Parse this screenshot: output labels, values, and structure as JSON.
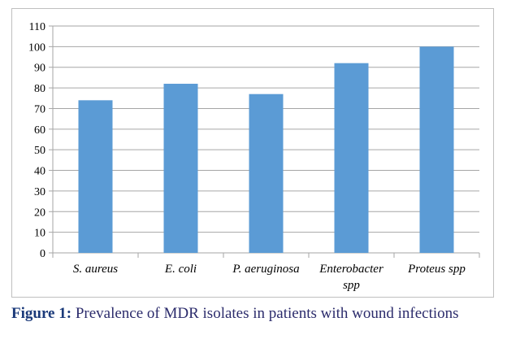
{
  "chart_data": {
    "type": "bar",
    "categories": [
      "S. aureus",
      "E. coli",
      "P. aeruginosa",
      "Enterobacter spp",
      "Proteus spp"
    ],
    "category_lines": [
      [
        "S. aureus"
      ],
      [
        "E. coli"
      ],
      [
        "P. aeruginosa"
      ],
      [
        "Enterobacter",
        "spp"
      ],
      [
        "Proteus spp"
      ]
    ],
    "values": [
      74,
      82,
      77,
      92,
      100
    ],
    "ylim": [
      0,
      110
    ],
    "yticks": [
      0,
      10,
      20,
      30,
      40,
      50,
      60,
      70,
      80,
      90,
      100,
      110
    ],
    "grid": true,
    "legend": "none",
    "bar_color": "#5b9bd5",
    "grid_color": "#a6a6a6"
  },
  "caption": {
    "label": "Figure 1:",
    "text": " Prevalence of MDR isolates in patients with wound infections"
  }
}
